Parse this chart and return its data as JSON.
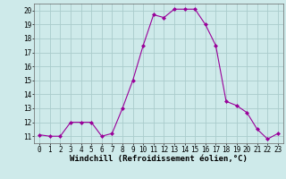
{
  "x": [
    0,
    1,
    2,
    3,
    4,
    5,
    6,
    7,
    8,
    9,
    10,
    11,
    12,
    13,
    14,
    15,
    16,
    17,
    18,
    19,
    20,
    21,
    22,
    23
  ],
  "y": [
    11.1,
    11.0,
    11.0,
    12.0,
    12.0,
    12.0,
    11.0,
    11.2,
    13.0,
    15.0,
    17.5,
    19.7,
    19.5,
    20.1,
    20.1,
    20.1,
    19.0,
    17.5,
    13.5,
    13.2,
    12.7,
    11.5,
    10.8,
    11.2
  ],
  "line_color": "#990099",
  "marker": "D",
  "markersize": 2.0,
  "linewidth": 0.8,
  "background_color": "#ceeaea",
  "grid_color": "#aacccc",
  "xlabel": "Windchill (Refroidissement éolien,°C)",
  "ylim": [
    10.5,
    20.5
  ],
  "xlim": [
    -0.5,
    23.5
  ],
  "yticks": [
    11,
    12,
    13,
    14,
    15,
    16,
    17,
    18,
    19,
    20
  ],
  "xticks": [
    0,
    1,
    2,
    3,
    4,
    5,
    6,
    7,
    8,
    9,
    10,
    11,
    12,
    13,
    14,
    15,
    16,
    17,
    18,
    19,
    20,
    21,
    22,
    23
  ],
  "tick_fontsize": 5.5,
  "xlabel_fontsize": 6.5
}
